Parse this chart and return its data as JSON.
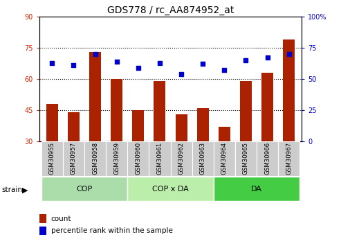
{
  "title": "GDS778 / rc_AA874952_at",
  "samples": [
    "GSM30955",
    "GSM30957",
    "GSM30958",
    "GSM30959",
    "GSM30960",
    "GSM30961",
    "GSM30962",
    "GSM30963",
    "GSM30964",
    "GSM30965",
    "GSM30966",
    "GSM30967"
  ],
  "counts": [
    48,
    44,
    73,
    60,
    45,
    59,
    43,
    46,
    37,
    59,
    63,
    79
  ],
  "percentiles": [
    63,
    61,
    70,
    64,
    59,
    63,
    54,
    62,
    57,
    65,
    67,
    70
  ],
  "left_ylim": [
    30,
    90
  ],
  "right_ylim": [
    0,
    100
  ],
  "left_yticks": [
    30,
    45,
    60,
    75,
    90
  ],
  "right_yticks": [
    0,
    25,
    50,
    75,
    100
  ],
  "right_yticklabels": [
    "0",
    "25",
    "50",
    "75",
    "100%"
  ],
  "bar_color": "#AA2200",
  "dot_color": "#0000CC",
  "groups": [
    {
      "label": "COP",
      "start": 0,
      "end": 4
    },
    {
      "label": "COP x DA",
      "start": 4,
      "end": 8
    },
    {
      "label": "DA",
      "start": 8,
      "end": 12
    }
  ],
  "group_colors": [
    "#AADDAA",
    "#BBEEAA",
    "#44CC44"
  ],
  "strain_label": "strain",
  "legend_count_label": "count",
  "legend_pct_label": "percentile rank within the sample",
  "title_fontsize": 10,
  "tick_fontsize": 7,
  "label_fontsize": 8,
  "sample_box_color": "#CCCCCC"
}
